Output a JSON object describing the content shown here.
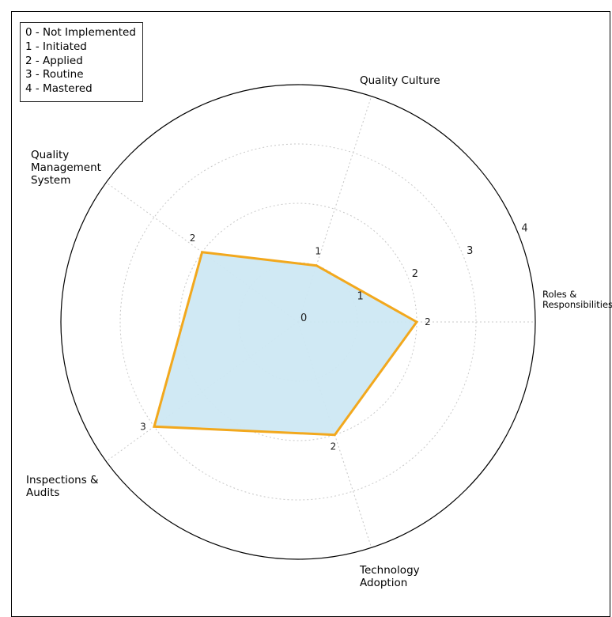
{
  "legend": [
    "0 - Not Implemented",
    "1 - Initiated",
    "2 - Applied",
    "3 - Routine",
    "4 - Mastered"
  ],
  "chart_data": {
    "type": "radar",
    "categories": [
      "Roles & Responsibilities",
      "Quality Culture",
      "Quality Management System",
      "Inspections & Audits",
      "Technology Adoption"
    ],
    "category_lines": [
      [
        "Roles &",
        "Responsibilities"
      ],
      [
        "Quality Culture"
      ],
      [
        "Quality",
        "Management",
        "System"
      ],
      [
        "Inspections &",
        "Audits"
      ],
      [
        "Technology",
        "Adoption"
      ]
    ],
    "values": [
      2,
      1,
      2,
      3,
      2
    ],
    "value_labels": [
      "2",
      "1",
      "2",
      "3",
      "2"
    ],
    "rlim": [
      0,
      4
    ],
    "rticks": [
      "0",
      "1",
      "2",
      "3",
      "4"
    ],
    "grid": true,
    "fill_color": "#cde8f3",
    "line_color": "#f2a81d",
    "grid_color": "#c8c8c8"
  }
}
